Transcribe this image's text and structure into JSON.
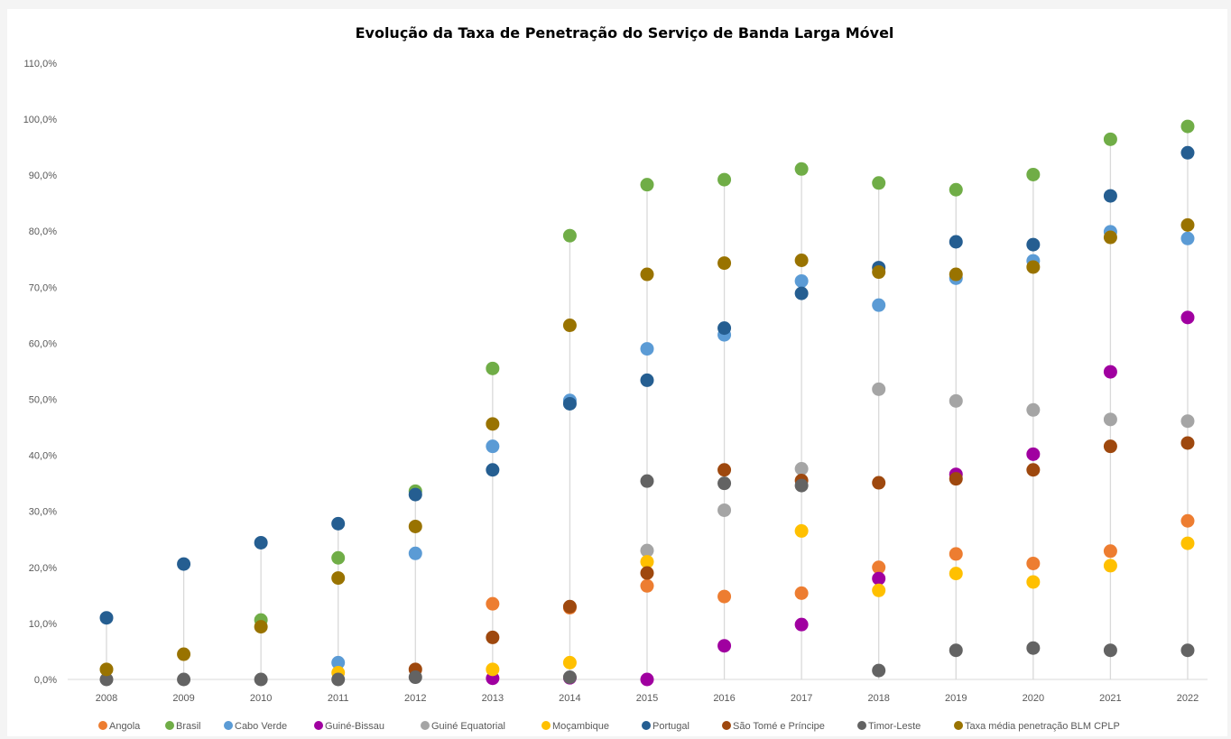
{
  "chart_data": {
    "type": "scatter",
    "title": "Evolução da Taxa de Penetração do Serviço de Banda Larga Móvel",
    "xlabel": "",
    "ylabel": "",
    "x": [
      "2008",
      "2009",
      "2010",
      "2011",
      "2012",
      "2013",
      "2014",
      "2015",
      "2016",
      "2017",
      "2018",
      "2019",
      "2020",
      "2021",
      "2022"
    ],
    "yticks": [
      "0,0%",
      "10,0%",
      "20,0%",
      "30,0%",
      "40,0%",
      "50,0%",
      "60,0%",
      "70,0%",
      "80,0%",
      "90,0%",
      "100,0%",
      "110,0%"
    ],
    "ylim": [
      0,
      110
    ],
    "grid": false,
    "drop_lines": true,
    "legend_position": "bottom",
    "series": [
      {
        "name": "Angola",
        "color": "#ED7D31",
        "values": [
          null,
          null,
          null,
          null,
          null,
          13.5,
          12.8,
          16.7,
          14.8,
          15.4,
          20.0,
          22.4,
          20.7,
          22.9,
          28.3
        ]
      },
      {
        "name": "Brasil",
        "color": "#70AD47",
        "values": [
          null,
          null,
          10.6,
          21.7,
          33.6,
          55.5,
          79.2,
          88.3,
          89.2,
          91.1,
          88.6,
          87.4,
          90.1,
          96.4,
          98.7
        ]
      },
      {
        "name": "Cabo Verde",
        "color": "#5B9BD5",
        "values": [
          null,
          null,
          null,
          3.0,
          22.5,
          41.6,
          49.8,
          59.0,
          61.5,
          71.1,
          66.8,
          71.6,
          74.7,
          79.9,
          78.7
        ]
      },
      {
        "name": "Guiné-Bissau",
        "color": "#A000A0",
        "values": [
          null,
          null,
          null,
          null,
          null,
          0.2,
          0.3,
          0.0,
          6.0,
          9.8,
          18.0,
          36.6,
          40.2,
          54.9,
          64.6
        ]
      },
      {
        "name": "Guiné Equatorial",
        "color": "#A5A5A5",
        "values": [
          null,
          null,
          null,
          null,
          null,
          null,
          null,
          23.0,
          30.2,
          37.6,
          51.8,
          49.7,
          48.1,
          46.4,
          46.1
        ]
      },
      {
        "name": "Moçambique",
        "color": "#FFC000",
        "values": [
          null,
          null,
          null,
          1.2,
          null,
          1.8,
          3.0,
          21.0,
          null,
          26.5,
          15.9,
          18.9,
          17.4,
          20.3,
          24.3
        ]
      },
      {
        "name": "Portugal",
        "color": "#255E91",
        "values": [
          11.0,
          20.6,
          24.4,
          27.8,
          33.0,
          37.4,
          49.2,
          53.4,
          62.7,
          68.9,
          73.5,
          78.1,
          77.6,
          86.3,
          94.0
        ]
      },
      {
        "name": "São Tomé e Príncipe",
        "color": "#9E480E",
        "values": [
          null,
          null,
          null,
          null,
          1.8,
          7.5,
          13.0,
          19.0,
          37.4,
          35.5,
          35.1,
          35.8,
          37.4,
          41.6,
          42.2
        ]
      },
      {
        "name": "Timor-Leste",
        "color": "#636363",
        "values": [
          0.0,
          0.0,
          0.0,
          0.0,
          0.4,
          null,
          0.4,
          35.4,
          35.0,
          34.6,
          1.6,
          5.2,
          5.6,
          5.2,
          5.2
        ]
      },
      {
        "name": "Taxa média penetração BLM CPLP",
        "color": "#997300",
        "values": [
          1.8,
          4.5,
          9.4,
          18.1,
          27.3,
          45.6,
          63.2,
          72.3,
          74.3,
          74.8,
          72.7,
          72.3,
          73.6,
          78.9,
          81.1
        ]
      }
    ]
  }
}
